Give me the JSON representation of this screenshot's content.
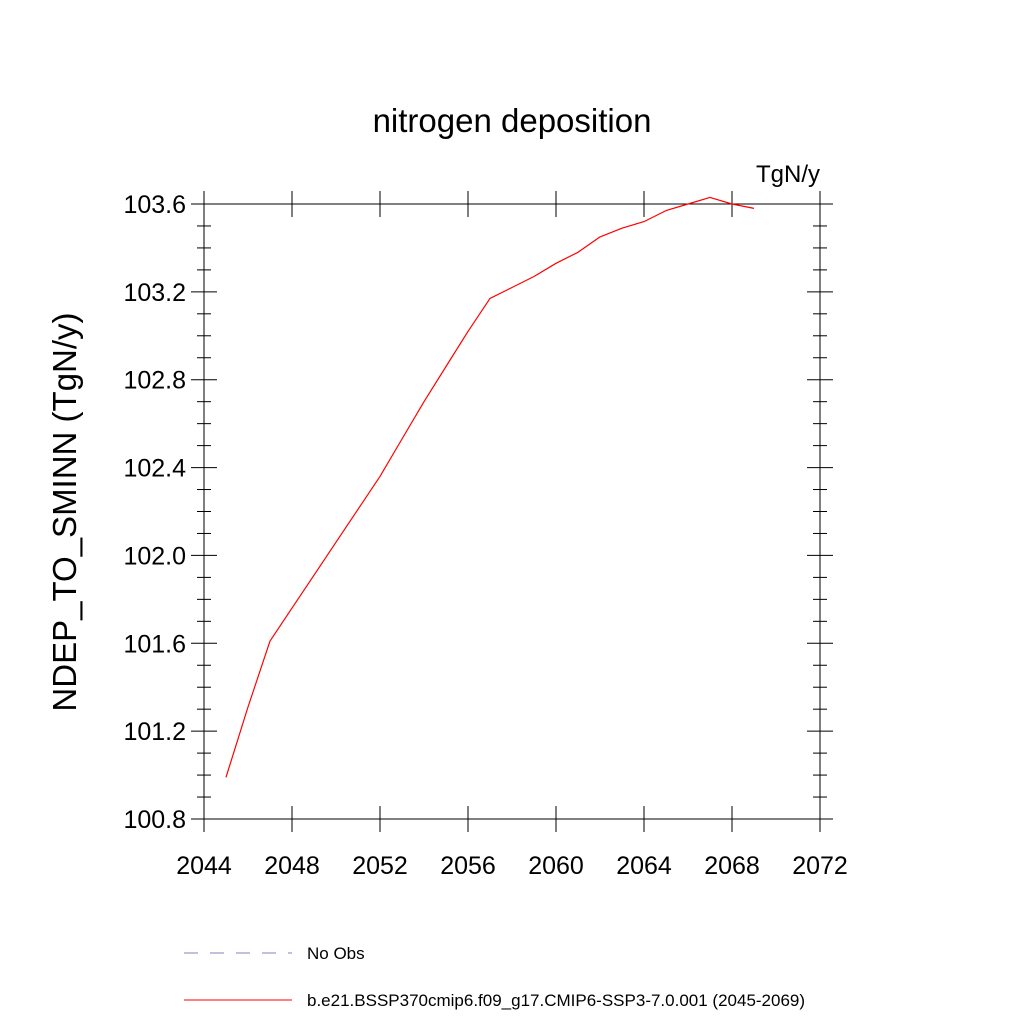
{
  "chart_data": {
    "type": "line",
    "title": "nitrogen deposition",
    "units_label": "TgN/y",
    "ylabel": "NDEP_TO_SMINN  (TgN/y)",
    "xlabel": "",
    "xlim": [
      2044,
      2072
    ],
    "ylim": [
      100.8,
      103.6
    ],
    "x_ticks": [
      "2044",
      "2048",
      "2052",
      "2056",
      "2060",
      "2064",
      "2068",
      "2072"
    ],
    "y_ticks": [
      "100.8",
      "101.2",
      "101.6",
      "102.0",
      "102.4",
      "102.8",
      "103.2",
      "103.6"
    ],
    "legend_position": "bottom",
    "series": [
      {
        "name": "b.e21.BSSP370cmip6.f09_g17.CMIP6-SSP3-7.0.001 (2045-2069)",
        "color": "#ff0000",
        "style": "solid",
        "x": [
          2045,
          2046,
          2047,
          2048,
          2049,
          2050,
          2051,
          2052,
          2053,
          2054,
          2055,
          2056,
          2057,
          2058,
          2059,
          2060,
          2061,
          2062,
          2063,
          2064,
          2065,
          2066,
          2067,
          2068,
          2069
        ],
        "y": [
          100.99,
          101.31,
          101.61,
          101.76,
          101.91,
          102.06,
          102.21,
          102.36,
          102.53,
          102.7,
          102.86,
          103.02,
          103.17,
          103.22,
          103.27,
          103.33,
          103.38,
          103.45,
          103.49,
          103.52,
          103.57,
          103.6,
          103.63,
          103.6,
          103.58
        ]
      },
      {
        "name": "No Obs",
        "color": "#8080c0",
        "style": "dashed",
        "x": [],
        "y": []
      }
    ]
  }
}
